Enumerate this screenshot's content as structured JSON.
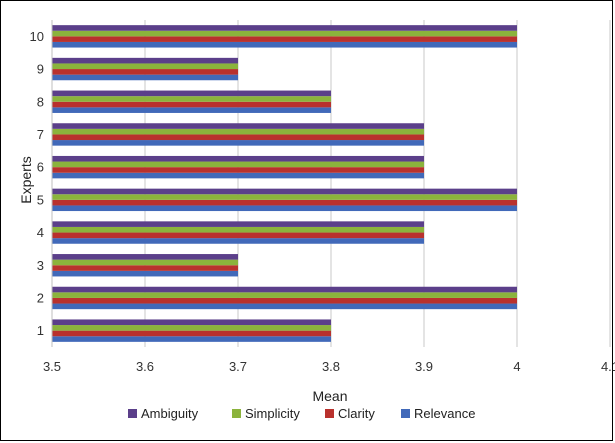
{
  "chart_data": {
    "type": "bar",
    "orientation": "horizontal",
    "title": "",
    "xlabel": "Mean",
    "ylabel": "Experts",
    "xlim": [
      3.5,
      4.1
    ],
    "x_ticks": [
      "3.5",
      "3.6",
      "3.7",
      "3.8",
      "3.9",
      "4",
      "4.1"
    ],
    "categories": [
      "1",
      "2",
      "3",
      "4",
      "5",
      "6",
      "7",
      "8",
      "9",
      "10"
    ],
    "grid": "vertical",
    "legend_position": "bottom",
    "series": [
      {
        "name": "Relevance",
        "color": "#4169b9",
        "values": [
          3.8,
          4.0,
          3.7,
          3.9,
          4.0,
          3.9,
          3.9,
          3.8,
          3.7,
          4.0
        ]
      },
      {
        "name": "Clarity",
        "color": "#b9312d",
        "values": [
          3.8,
          4.0,
          3.7,
          3.9,
          4.0,
          3.9,
          3.9,
          3.8,
          3.7,
          4.0
        ]
      },
      {
        "name": "Simplicity",
        "color": "#8bb33c",
        "values": [
          3.8,
          4.0,
          3.7,
          3.9,
          4.0,
          3.9,
          3.9,
          3.8,
          3.7,
          4.0
        ]
      },
      {
        "name": "Ambiguity",
        "color": "#5b3f8a",
        "values": [
          3.8,
          4.0,
          3.7,
          3.9,
          4.0,
          3.9,
          3.9,
          3.8,
          3.7,
          4.0
        ]
      }
    ],
    "legend_order": [
      "Ambiguity",
      "Simplicity",
      "Clarity",
      "Relevance"
    ]
  }
}
